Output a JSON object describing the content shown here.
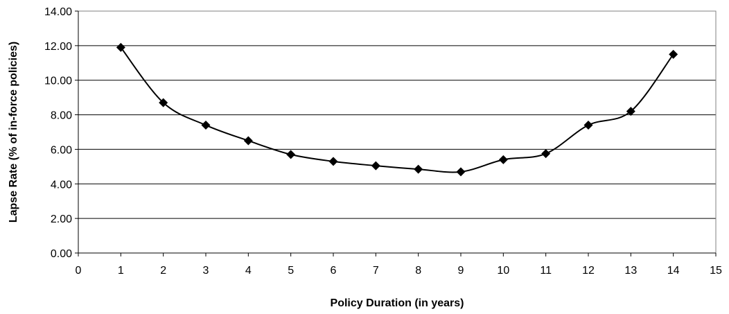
{
  "chart_data": {
    "type": "line",
    "title": "",
    "xlabel": "Policy Duration (in years)",
    "ylabel": "Lapse Rate (% of in-force policies)",
    "xlim": [
      0,
      15
    ],
    "ylim": [
      0,
      14
    ],
    "x_ticks": [
      0,
      1,
      2,
      3,
      4,
      5,
      6,
      7,
      8,
      9,
      10,
      11,
      12,
      13,
      14,
      15
    ],
    "y_ticks": [
      0,
      2,
      4,
      6,
      8,
      10,
      12,
      14
    ],
    "x_tick_labels": [
      "0",
      "1",
      "2",
      "3",
      "4",
      "5",
      "6",
      "7",
      "8",
      "9",
      "10",
      "11",
      "12",
      "13",
      "14",
      "15"
    ],
    "y_tick_labels": [
      "0.00",
      "2.00",
      "4.00",
      "6.00",
      "8.00",
      "10.00",
      "12.00",
      "14.00"
    ],
    "grid": "horizontal major gridlines",
    "legend": "none",
    "line_style": "smoothed",
    "marker": "diamond",
    "series_color": "#000000",
    "series": [
      {
        "x": [
          1,
          2,
          3,
          4,
          5,
          6,
          7,
          8,
          9,
          10,
          11,
          12,
          13,
          14
        ],
        "values": [
          11.9,
          8.7,
          7.4,
          6.5,
          5.7,
          5.3,
          5.05,
          4.85,
          4.7,
          5.4,
          5.75,
          7.4,
          8.2,
          11.5
        ]
      }
    ]
  }
}
